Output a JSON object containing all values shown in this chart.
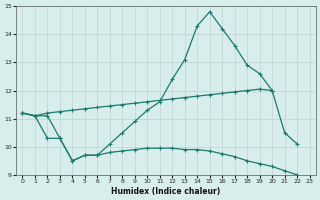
{
  "xlabel": "Humidex (Indice chaleur)",
  "x_values": [
    0,
    1,
    2,
    3,
    4,
    5,
    6,
    7,
    8,
    9,
    10,
    11,
    12,
    13,
    14,
    15,
    16,
    17,
    18,
    19,
    20,
    21,
    22,
    23
  ],
  "line1": [
    11.2,
    11.1,
    11.1,
    10.3,
    9.5,
    9.7,
    9.7,
    10.1,
    10.5,
    10.9,
    11.3,
    11.6,
    12.4,
    13.1,
    14.3,
    14.8,
    14.2,
    13.6,
    12.9,
    12.6,
    12.0,
    null,
    null,
    null
  ],
  "line2": [
    11.2,
    11.1,
    11.2,
    11.25,
    11.3,
    11.35,
    11.4,
    11.45,
    11.5,
    11.55,
    11.6,
    11.65,
    11.7,
    11.75,
    11.8,
    11.85,
    11.9,
    11.95,
    12.0,
    12.05,
    12.0,
    10.5,
    10.1,
    null
  ],
  "line3": [
    11.2,
    11.1,
    10.3,
    10.3,
    9.5,
    9.7,
    9.7,
    9.8,
    9.85,
    9.9,
    9.95,
    9.95,
    9.95,
    9.9,
    9.9,
    9.85,
    9.75,
    9.65,
    9.5,
    9.4,
    9.3,
    9.15,
    9.0,
    8.6
  ],
  "bg_color": "#d8eeed",
  "line_color": "#1a7a6e",
  "grid_color": "#c0d0d0",
  "xlim": [
    -0.5,
    23.5
  ],
  "ylim": [
    9.0,
    15.0
  ],
  "yticks": [
    9,
    10,
    11,
    12,
    13,
    14,
    15
  ],
  "xticks": [
    0,
    1,
    2,
    3,
    4,
    5,
    6,
    7,
    8,
    9,
    10,
    11,
    12,
    13,
    14,
    15,
    16,
    17,
    18,
    19,
    20,
    21,
    22,
    23
  ]
}
